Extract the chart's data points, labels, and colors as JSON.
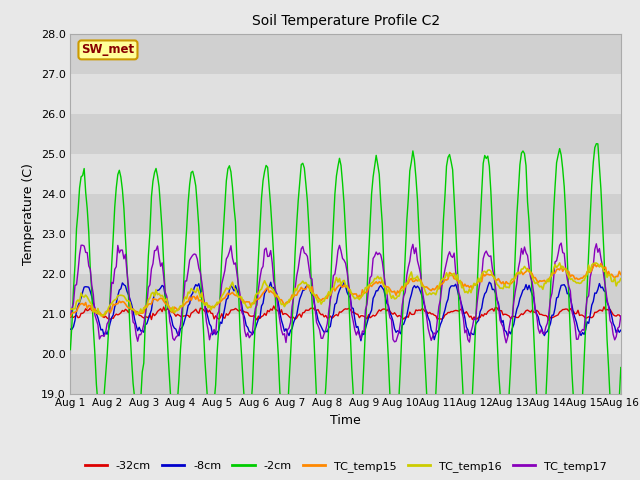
{
  "title": "Soil Temperature Profile C2",
  "xlabel": "Time",
  "ylabel": "Temperature (C)",
  "ylim": [
    19.0,
    28.0
  ],
  "xlim": [
    0,
    15
  ],
  "yticks": [
    19.0,
    20.0,
    21.0,
    22.0,
    23.0,
    24.0,
    25.0,
    26.0,
    27.0,
    28.0
  ],
  "xtick_labels": [
    "Aug 1",
    "Aug 2",
    "Aug 3",
    "Aug 4",
    "Aug 5",
    "Aug 6",
    "Aug 7",
    "Aug 8",
    "Aug 9",
    "Aug 10",
    "Aug 11",
    "Aug 12",
    "Aug 13",
    "Aug 14",
    "Aug 15",
    "Aug 16"
  ],
  "annotation_text": "SW_met",
  "annotation_bg": "#ffff99",
  "annotation_border": "#cc9900",
  "annotation_text_color": "#880000",
  "colors": {
    "depth_32cm": "#dd0000",
    "depth_8cm": "#0000cc",
    "depth_2cm": "#00cc00",
    "tc_temp15": "#ff8800",
    "tc_temp16": "#cccc00",
    "tc_temp17": "#8800bb"
  },
  "legend_labels": [
    "-32cm",
    "-8cm",
    "-2cm",
    "TC_temp15",
    "TC_temp16",
    "TC_temp17"
  ],
  "fig_bg_color": "#e8e8e8",
  "band_colors": [
    "#d0d0d0",
    "#e0e0e0"
  ],
  "n_points": 361,
  "days": 15
}
